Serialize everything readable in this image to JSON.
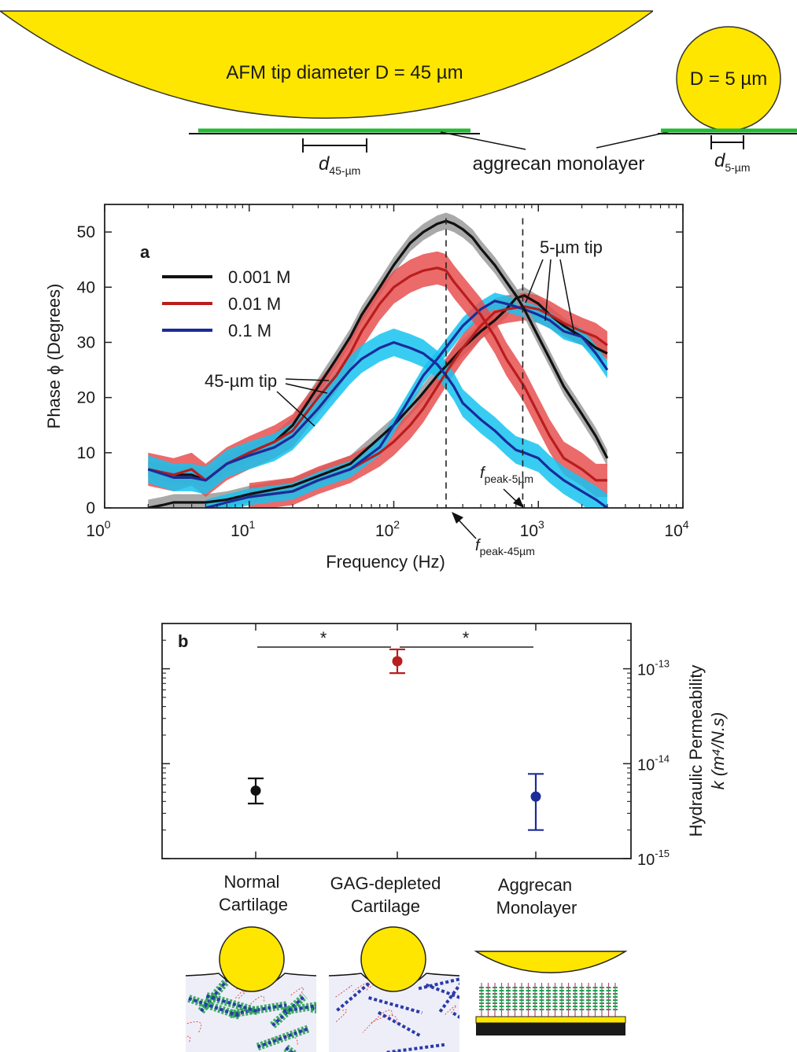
{
  "colors": {
    "tip_fill": "#FFE600",
    "monolayer": "#22BB33",
    "c001": "#111111",
    "c001_band": "#9A9A9A",
    "c01": "#B81E1E",
    "c01_band": "#E85050",
    "c1": "#1B2B9A",
    "c1_band": "#16C3F0",
    "dark_gray": "#1a1a1a"
  },
  "schematic": {
    "tip45_label": "AFM tip diameter D = 45 µm",
    "tip5_label": "D = 5 µm",
    "d45_label": "d",
    "d45_sub": "45-µm",
    "d5_label": "d",
    "d5_sub": "5-µm",
    "monolayer_label": "aggrecan monolayer"
  },
  "chart_data": [
    {
      "panel": "a",
      "type": "line",
      "xlabel": "Frequency (Hz)",
      "ylabel": "Phase ϕ (Degrees)",
      "xscale": "log",
      "xlim": [
        1,
        10000
      ],
      "ylim": [
        0,
        55
      ],
      "xticks": [
        {
          "value": 1,
          "base": "10",
          "exp": "0"
        },
        {
          "value": 10,
          "base": "10",
          "exp": "1"
        },
        {
          "value": 100,
          "base": "10",
          "exp": "2"
        },
        {
          "value": 1000,
          "base": "10",
          "exp": "3"
        },
        {
          "value": 10000,
          "base": "10",
          "exp": "4"
        }
      ],
      "yticks": [
        0,
        10,
        20,
        30,
        40,
        50
      ],
      "legend_position": "top-left",
      "annotations": {
        "tip45": "45-µm tip",
        "tip5": "5-µm tip",
        "fpeak45": "f",
        "fpeak45_sub": "peak-45µm",
        "fpeak5": "f",
        "fpeak5_sub": "peak-5µm"
      },
      "vlines": [
        230,
        780
      ],
      "series": [
        {
          "name": "0.001 M",
          "tip": "45-µm",
          "color_key": "c001",
          "band_key": "c001_band",
          "band": 1.5,
          "x": [
            2,
            3,
            4,
            5,
            7,
            10,
            15,
            20,
            30,
            40,
            50,
            60,
            80,
            100,
            130,
            160,
            200,
            230,
            260,
            300,
            350,
            400,
            500,
            600,
            700,
            800,
            1000,
            1200,
            1500,
            2000,
            2500,
            3000
          ],
          "y": [
            7,
            6,
            6,
            5,
            8,
            10,
            12,
            15,
            22,
            27,
            31,
            35,
            40,
            44,
            48,
            50,
            51.5,
            52,
            51.5,
            50.5,
            49,
            47,
            44,
            41,
            38.5,
            36,
            31,
            27,
            22,
            17,
            13,
            9
          ]
        },
        {
          "name": "0.01 M",
          "tip": "45-µm",
          "color_key": "c01",
          "band_key": "c01_band",
          "band": 3,
          "x": [
            2,
            3,
            4,
            5,
            7,
            10,
            15,
            20,
            30,
            40,
            50,
            60,
            80,
            100,
            130,
            160,
            200,
            230,
            260,
            300,
            400,
            500,
            600,
            800,
            1000,
            1200,
            1500,
            2000,
            2500,
            3000
          ],
          "y": [
            7,
            6,
            7,
            5,
            8,
            10,
            12,
            14,
            20,
            24,
            28,
            32,
            37,
            40,
            42,
            43,
            43.5,
            43,
            41,
            39,
            35,
            31,
            27,
            22,
            17,
            13,
            9,
            7,
            5,
            5
          ]
        },
        {
          "name": "0.1 M",
          "tip": "45-µm",
          "color_key": "c1",
          "band_key": "c1_band",
          "band": 2.5,
          "x": [
            2,
            3,
            4,
            5,
            7,
            10,
            15,
            20,
            30,
            40,
            50,
            60,
            80,
            100,
            130,
            160,
            200,
            230,
            260,
            300,
            400,
            500,
            600,
            700,
            800,
            1000,
            1200,
            1500,
            2000,
            2500,
            3000
          ],
          "y": [
            7,
            5.5,
            5.5,
            5,
            8,
            9.5,
            11,
            13,
            18,
            22,
            25,
            27,
            29,
            30,
            29,
            28,
            26,
            24,
            22,
            19,
            16,
            14,
            12,
            10.5,
            10,
            9,
            7,
            5,
            3,
            1.5,
            0
          ]
        },
        {
          "name": "0.001 M",
          "tip": "5-µm",
          "color_key": "c001",
          "band_key": "c001_band",
          "band": 1.5,
          "x": [
            2,
            2.5,
            3,
            4,
            5,
            7,
            10,
            20,
            50,
            100,
            150,
            200,
            300,
            400,
            500,
            600,
            700,
            800,
            1000,
            1200,
            1500,
            2000,
            2500,
            3000
          ],
          "y": [
            0,
            0.5,
            1,
            1,
            1,
            1.5,
            2.5,
            4,
            8,
            15,
            20,
            24,
            29,
            32,
            34,
            36,
            38,
            38.5,
            37,
            35,
            33,
            31,
            29,
            28
          ]
        },
        {
          "name": "0.01 M",
          "tip": "5-µm",
          "color_key": "c01",
          "band_key": "c01_band",
          "band": 2.5,
          "x": [
            10,
            20,
            30,
            50,
            80,
            100,
            130,
            160,
            200,
            250,
            300,
            400,
            500,
            600,
            800,
            1000,
            1200,
            1500,
            2000,
            2500,
            3000
          ],
          "y": [
            2,
            3,
            5,
            7,
            10,
            12,
            15,
            18,
            22,
            26,
            29,
            33,
            35.5,
            36,
            36.5,
            36,
            35,
            33.5,
            32,
            31,
            29.5
          ]
        },
        {
          "name": "0.1 M",
          "tip": "5-µm",
          "color_key": "c1",
          "band_key": "c1_band",
          "band": 1.5,
          "x": [
            5,
            7,
            10,
            20,
            30,
            50,
            80,
            100,
            130,
            160,
            200,
            300,
            400,
            500,
            600,
            800,
            1000,
            1200,
            1500,
            2000,
            2500,
            3000
          ],
          "y": [
            0,
            1,
            2,
            3,
            5,
            7,
            11,
            15,
            20,
            24,
            27,
            33,
            36,
            37.5,
            37,
            36,
            35,
            34,
            32,
            31,
            28,
            25
          ]
        }
      ]
    },
    {
      "panel": "b",
      "type": "scatter",
      "ylabel": "Hydraulic Permeability",
      "ylabel2": "k (m⁴/N.s)",
      "yscale": "log",
      "ylim": [
        1e-15,
        3e-13
      ],
      "yticks": [
        {
          "value": 1e-13,
          "base": "10",
          "exp": "-13"
        },
        {
          "value": 1e-14,
          "base": "10",
          "exp": "-14"
        },
        {
          "value": 1e-15,
          "base": "10",
          "exp": "-15"
        }
      ],
      "significance": "*",
      "categories": [
        {
          "line1": "Normal",
          "line2": "Cartilage",
          "value": 5.2e-15,
          "lo": 3.8e-15,
          "hi": 7e-15,
          "color_key": "c001"
        },
        {
          "line1": "GAG-depleted",
          "line2": "Cartilage",
          "value": 1.2e-13,
          "lo": 9e-14,
          "hi": 1.6e-13,
          "color_key": "c01"
        },
        {
          "line1": "Aggrecan",
          "line2": "Monolayer",
          "value": 4.5e-15,
          "lo": 2e-15,
          "hi": 7.8e-15,
          "color_key": "c1"
        }
      ]
    }
  ]
}
